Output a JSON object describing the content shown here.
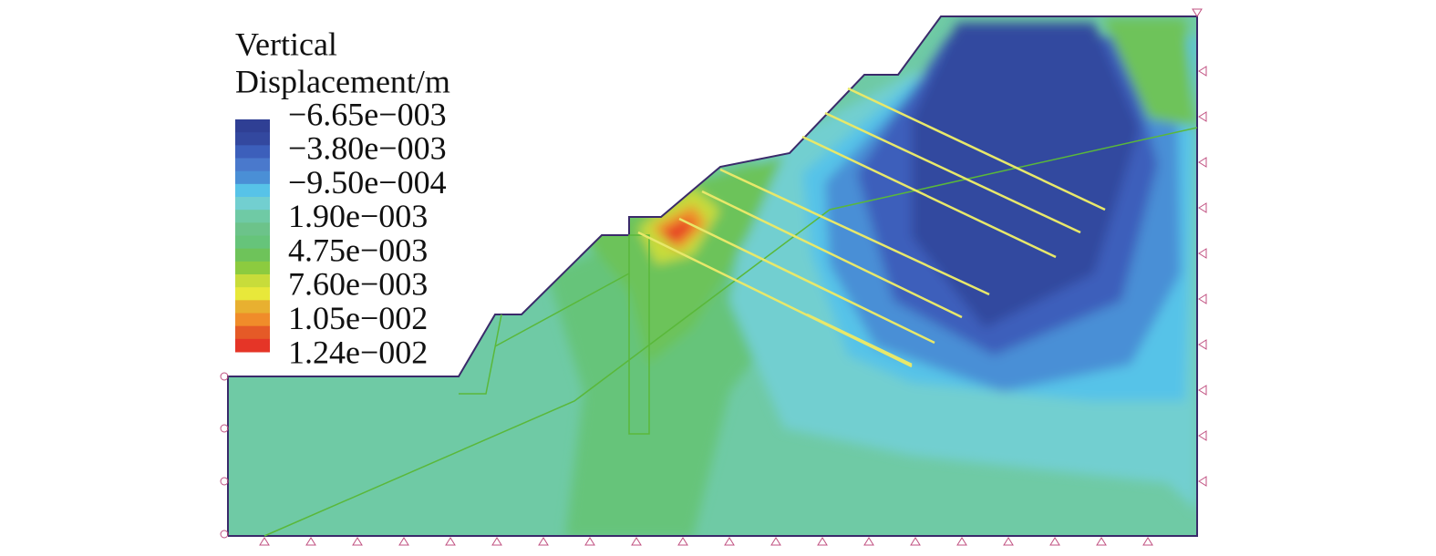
{
  "legend": {
    "title_lines": [
      "Vertical",
      "Displacement/m"
    ],
    "labels": [
      "−6.65e−003",
      "−3.80e−003",
      "−9.50e−004",
      "1.90e−003",
      "4.75e−003",
      "7.60e−003",
      "1.05e−002",
      "1.24e−002"
    ]
  }
}
